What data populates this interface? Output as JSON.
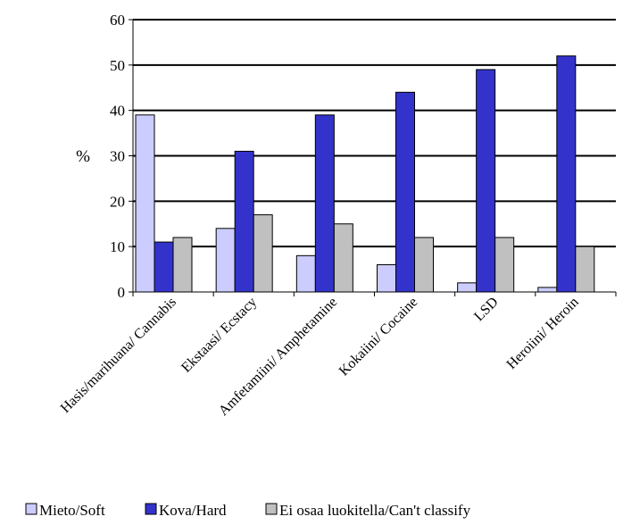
{
  "chart_data": {
    "type": "bar",
    "ylabel": "%",
    "ylim": [
      0,
      60
    ],
    "yticks": [
      0,
      10,
      20,
      30,
      40,
      50,
      60
    ],
    "grid": true,
    "legend_position": "bottom",
    "categories": [
      "Hasis/marihuana/ Cannabis",
      "Ekstaasi/ Ecstacy",
      "Amfetamiini/ Amphetamine",
      "Kokaiini/ Cocaine",
      "LSD",
      "Heroiini/ Heroin"
    ],
    "series": [
      {
        "name": "Mieto/Soft",
        "color": "#ccccff",
        "values": [
          39,
          14,
          8,
          6,
          2,
          1
        ]
      },
      {
        "name": "Kova/Hard",
        "color": "#3333cc",
        "values": [
          11,
          31,
          39,
          44,
          49,
          52
        ]
      },
      {
        "name": "Ei osaa luokitella/Can't classify",
        "color": "#c0c0c0",
        "values": [
          12,
          17,
          15,
          12,
          12,
          10
        ]
      }
    ]
  }
}
